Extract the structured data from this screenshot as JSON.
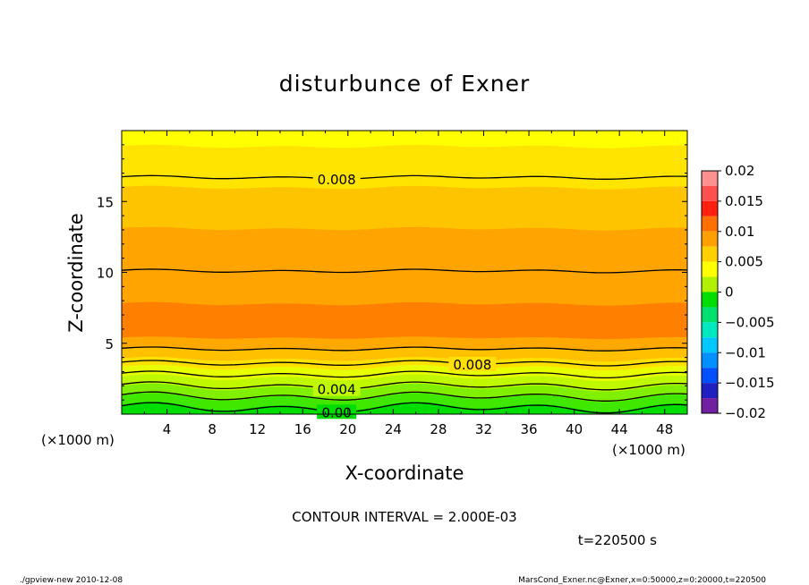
{
  "chart_data": {
    "type": "heatmap",
    "title": "disturbunce of Exner",
    "xlabel": "X-coordinate",
    "ylabel": "Z-coordinate",
    "x_unit_left": "(×1000 m)",
    "x_unit_right": "(×1000 m)",
    "xlim": [
      0,
      50
    ],
    "ylim": [
      0,
      20
    ],
    "x_ticks": [
      4,
      8,
      12,
      16,
      20,
      24,
      28,
      32,
      36,
      40,
      44,
      48
    ],
    "y_ticks": [
      5,
      10,
      15
    ],
    "contour_interval_text": "CONTOUR INTERVAL = 2.000E-03",
    "time_text": "t=220500 s",
    "colorbar": {
      "range": [
        -0.02,
        0.02
      ],
      "labels": [
        "0.02",
        "0.015",
        "0.01",
        "0.005",
        "0",
        "−0.005",
        "−0.01",
        "−0.015",
        "−0.02"
      ],
      "bins": [
        {
          "min": 0.0175,
          "max": 0.02,
          "color": "#ff9090"
        },
        {
          "min": 0.015,
          "max": 0.0175,
          "color": "#ff5050"
        },
        {
          "min": 0.0125,
          "max": 0.015,
          "color": "#ff2010"
        },
        {
          "min": 0.01,
          "max": 0.0125,
          "color": "#ff7000"
        },
        {
          "min": 0.0075,
          "max": 0.01,
          "color": "#ffa000"
        },
        {
          "min": 0.005,
          "max": 0.0075,
          "color": "#ffd000"
        },
        {
          "min": 0.0025,
          "max": 0.005,
          "color": "#ffff00"
        },
        {
          "min": 0.0,
          "max": 0.0025,
          "color": "#b0f000"
        },
        {
          "min": -0.0025,
          "max": 0.0,
          "color": "#00dd00"
        },
        {
          "min": -0.005,
          "max": -0.0025,
          "color": "#00e070"
        },
        {
          "min": -0.0075,
          "max": -0.005,
          "color": "#00e8c0"
        },
        {
          "min": -0.01,
          "max": -0.0075,
          "color": "#00c8ff"
        },
        {
          "min": -0.0125,
          "max": -0.01,
          "color": "#0090ff"
        },
        {
          "min": -0.015,
          "max": -0.0125,
          "color": "#0050ff"
        },
        {
          "min": -0.0175,
          "max": -0.015,
          "color": "#2020c0"
        },
        {
          "min": -0.02,
          "max": -0.0175,
          "color": "#7020a0"
        }
      ]
    },
    "bands": [
      {
        "z_bottom": 0.0,
        "z_top": 0.55,
        "color": "#00dd00"
      },
      {
        "z_bottom": 0.55,
        "z_top": 1.2,
        "color": "#40e800"
      },
      {
        "z_bottom": 1.2,
        "z_top": 1.9,
        "color": "#80f000"
      },
      {
        "z_bottom": 1.9,
        "z_top": 2.6,
        "color": "#c0f800"
      },
      {
        "z_bottom": 2.6,
        "z_top": 3.3,
        "color": "#e8ff00"
      },
      {
        "z_bottom": 3.3,
        "z_top": 3.9,
        "color": "#ffe000"
      },
      {
        "z_bottom": 3.9,
        "z_top": 4.6,
        "color": "#ffc000"
      },
      {
        "z_bottom": 4.6,
        "z_top": 5.4,
        "color": "#ffa800"
      },
      {
        "z_bottom": 5.4,
        "z_top": 7.8,
        "color": "#ff8000"
      },
      {
        "z_bottom": 7.8,
        "z_top": 13.1,
        "color": "#ffa400"
      },
      {
        "z_bottom": 13.1,
        "z_top": 16.0,
        "color": "#ffc400"
      },
      {
        "z_bottom": 16.0,
        "z_top": 18.9,
        "color": "#ffe400"
      },
      {
        "z_bottom": 18.9,
        "z_top": 20.0,
        "color": "#ffff00"
      }
    ],
    "contours": [
      {
        "value": 0.0,
        "z": 0.45,
        "label": "0.00",
        "label_x": 19
      },
      {
        "value": 0.002,
        "z": 1.25,
        "label": "",
        "label_x": null
      },
      {
        "value": 0.004,
        "z": 2.0,
        "label": "0.004",
        "label_x": 19
      },
      {
        "value": 0.006,
        "z": 2.8,
        "label": "",
        "label_x": null
      },
      {
        "value": 0.008,
        "z": 3.6,
        "label": "0.008",
        "label_x": 31
      },
      {
        "value": 0.01,
        "z": 4.6,
        "label": "",
        "label_x": null
      },
      {
        "value": 0.01,
        "z": 10.1,
        "label": "",
        "label_x": null
      },
      {
        "value": 0.008,
        "z": 16.7,
        "label": "0.008",
        "label_x": 19
      }
    ]
  },
  "footer": {
    "left": "./gpview-new   2010-12-08",
    "right": "MarsCond_Exner.nc@Exner,x=0:50000,z=0:20000,t=220500"
  }
}
